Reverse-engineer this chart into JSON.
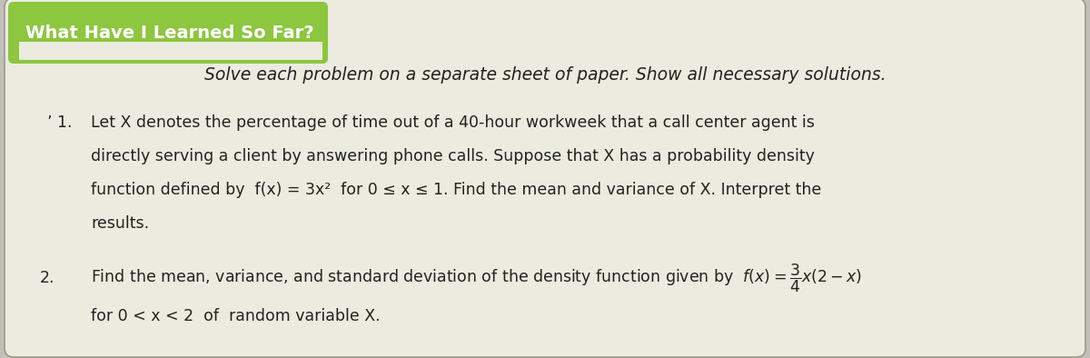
{
  "title": "What Have I Learned So Far?",
  "title_bg": "#8dc63f",
  "title_color": "#ffffff",
  "title_fontsize": 14,
  "card_bg": "#eeeee6",
  "card_edge": "#b0b0a0",
  "outer_bg": "#c0c0b8",
  "intro": "Solve each problem on a separate sheet of paper. Show all necessary solutions.",
  "item1_prefix": "’ 1.",
  "item1_line1": "Let X denotes the percentage of time out of a 40-hour workweek that a call center agent is",
  "item1_line2": "directly serving a client by answering phone calls. Suppose that X has a probability density",
  "item1_line3": "function defined by  f(x) = 3x²  for 0 ≤ x ≤ 1. Find the mean and variance of X. Interpret the",
  "item1_line4": "results.",
  "item2_prefix": "2.",
  "item2_line1": "Find the mean, variance, and standard deviation of the density function given by  f(x) =",
  "item2_frac_num": "3",
  "item2_frac_den": "4",
  "item2_line1b": "x(2 − x)",
  "item2_line2": "for 0 < x < 2  of  random variable X.",
  "body_fontsize": 12.5,
  "intro_fontsize": 13.5,
  "num2_fontsize": 12.5
}
